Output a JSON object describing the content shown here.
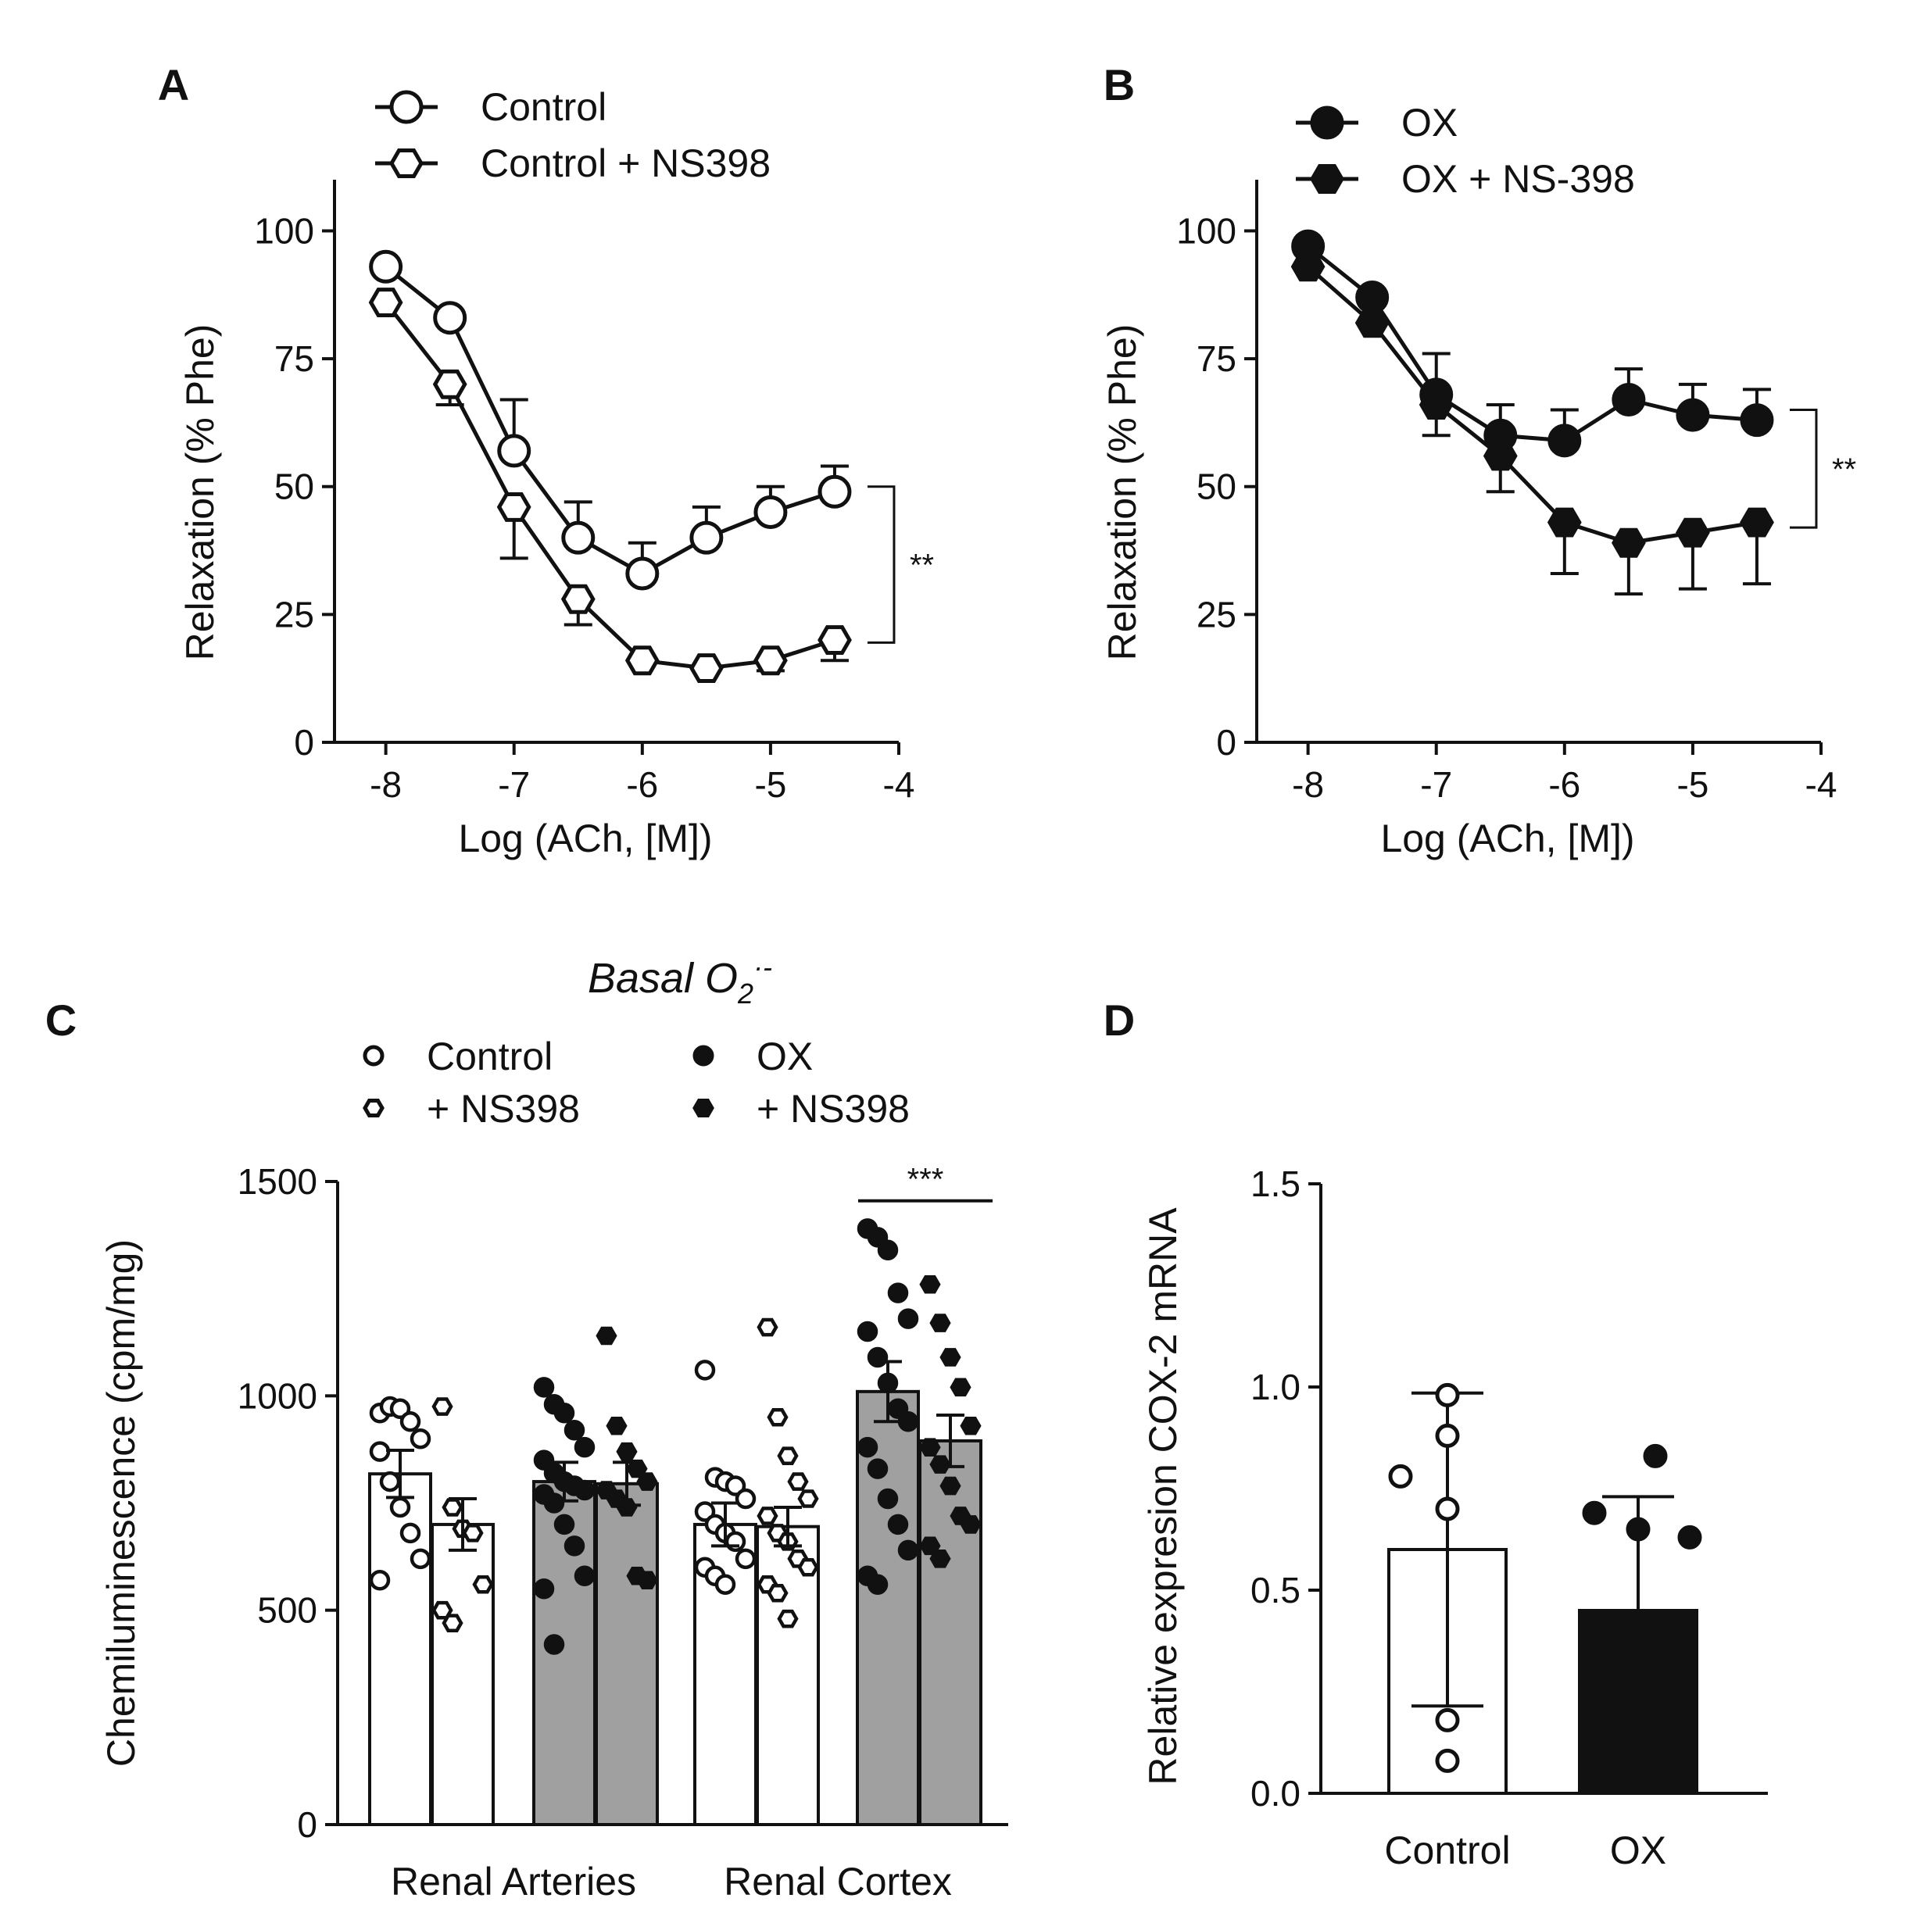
{
  "colors": {
    "ink": "#111111",
    "white_fill": "#ffffff",
    "grey_bar": "#a0a0a0",
    "black_bar": "#111111"
  },
  "chart_data": [
    {
      "panel": "A",
      "type": "line",
      "xlabel": "Log (ACh, [M])",
      "ylabel": "Relaxation (% Phe)",
      "xlim": [
        -8.4,
        -4
      ],
      "ylim": [
        0,
        110
      ],
      "xticks": [
        -8,
        -7,
        -6,
        -5,
        -4
      ],
      "yticks": [
        0,
        25,
        50,
        75,
        100
      ],
      "x": [
        -8,
        -7.5,
        -7,
        -6.5,
        -6,
        -5.5,
        -5,
        -4.5
      ],
      "series": [
        {
          "name": "Control",
          "marker": "circle-open",
          "values": [
            93,
            83,
            57,
            40,
            33,
            40,
            45,
            49
          ],
          "err": [
            0,
            0,
            10,
            7,
            6,
            6,
            5,
            5
          ]
        },
        {
          "name": "Control + NS398",
          "marker": "hexagon-open",
          "values": [
            86,
            70,
            46,
            28,
            16,
            14.5,
            16,
            20
          ],
          "err": [
            0,
            4,
            10,
            5,
            0,
            0,
            2,
            4
          ]
        }
      ],
      "significance": {
        "label": "**",
        "y_top": 50,
        "y_bottom": 19.5
      }
    },
    {
      "panel": "B",
      "type": "line",
      "xlabel": "Log (ACh, [M])",
      "ylabel": "Relaxation (% Phe)",
      "xlim": [
        -8.4,
        -4
      ],
      "ylim": [
        0,
        110
      ],
      "xticks": [
        -8,
        -7,
        -6,
        -5,
        -4
      ],
      "yticks": [
        0,
        25,
        50,
        75,
        100
      ],
      "x": [
        -8,
        -7.5,
        -7,
        -6.5,
        -6,
        -5.5,
        -5,
        -4.5
      ],
      "series": [
        {
          "name": "OX",
          "marker": "circle-filled",
          "values": [
            97,
            87,
            68,
            60,
            59,
            67,
            64,
            63
          ],
          "err": [
            0,
            0,
            8,
            6,
            6,
            6,
            6,
            6
          ]
        },
        {
          "name": "OX + NS-398",
          "marker": "hexagon-filled",
          "values": [
            93,
            82,
            66,
            56,
            43,
            39,
            41,
            43
          ],
          "err": [
            0,
            0,
            6,
            7,
            10,
            10,
            11,
            12
          ]
        }
      ],
      "significance": {
        "label": "**",
        "y_top": 65,
        "y_bottom": 42
      }
    },
    {
      "panel": "C",
      "type": "bar",
      "title": "Basal O2·-",
      "title_main": "Basal O",
      "title_sub": "2",
      "title_sup": "·-",
      "ylabel": "Chemiluminescence (cpm/mg)",
      "ylim": [
        0,
        1500
      ],
      "yticks": [
        0,
        500,
        1000,
        1500
      ],
      "categories": [
        "Renal Arteries",
        "Renal Cortex"
      ],
      "legend": [
        {
          "name": "Control",
          "marker": "circle-open"
        },
        {
          "name": "+ NS398",
          "marker": "hexagon-open"
        },
        {
          "name": "OX",
          "marker": "circle-filled"
        },
        {
          "name": "+ NS398",
          "marker": "hexagon-filled"
        }
      ],
      "bars": [
        {
          "group": 0,
          "name": "Control",
          "fill": "white",
          "marker": "circle-open",
          "mean": 818,
          "sem": 55,
          "points": [
            960,
            975,
            970,
            940,
            900,
            870,
            800,
            740,
            680,
            620,
            570
          ]
        },
        {
          "group": 0,
          "name": "Control + NS398",
          "fill": "white",
          "marker": "hexagon-open",
          "mean": 700,
          "sem": 60,
          "points": [
            975,
            740,
            690,
            680,
            560,
            500,
            470
          ]
        },
        {
          "group": 0,
          "name": "OX",
          "fill": "grey",
          "marker": "circle-filled",
          "mean": 800,
          "sem": 45,
          "points": [
            1020,
            980,
            960,
            920,
            880,
            850,
            820,
            800,
            790,
            780,
            770,
            750,
            700,
            650,
            580,
            550,
            420
          ]
        },
        {
          "group": 0,
          "name": "OX + NS398",
          "fill": "grey",
          "marker": "hexagon-filled",
          "mean": 795,
          "sem": 50,
          "points": [
            1140,
            930,
            870,
            830,
            800,
            780,
            760,
            740,
            580,
            570
          ]
        },
        {
          "group": 1,
          "name": "Control",
          "fill": "white",
          "marker": "circle-open",
          "mean": 700,
          "sem": 50,
          "points": [
            1060,
            810,
            800,
            790,
            760,
            730,
            700,
            680,
            660,
            620,
            600,
            580,
            560
          ]
        },
        {
          "group": 1,
          "name": "Control + NS398",
          "fill": "white",
          "marker": "hexagon-open",
          "mean": 695,
          "sem": 45,
          "points": [
            1160,
            950,
            860,
            800,
            760,
            720,
            680,
            660,
            620,
            600,
            560,
            540,
            480
          ]
        },
        {
          "group": 1,
          "name": "OX",
          "fill": "grey",
          "marker": "circle-filled",
          "mean": 1010,
          "sem": 70,
          "points": [
            1390,
            1370,
            1340,
            1240,
            1180,
            1150,
            1090,
            1030,
            970,
            940,
            880,
            830,
            760,
            700,
            640,
            580,
            560
          ]
        },
        {
          "group": 1,
          "name": "OX + NS398",
          "fill": "grey",
          "marker": "hexagon-filled",
          "mean": 895,
          "sem": 60,
          "points": [
            1260,
            1170,
            1090,
            1020,
            930,
            880,
            840,
            790,
            720,
            700,
            650,
            620
          ]
        }
      ],
      "significance": {
        "label": "***",
        "y": 1455
      }
    },
    {
      "panel": "D",
      "type": "bar",
      "ylabel": "Relative expresion COX-2 mRNA",
      "ylim": [
        0,
        1.5
      ],
      "yticks": [
        "0.0",
        "0.5",
        "1.0",
        "1.5"
      ],
      "categories": [
        "Control",
        "OX"
      ],
      "bars": [
        {
          "name": "Control",
          "fill": "white",
          "marker": "circle-open",
          "mean": 0.6,
          "sd": 0.385,
          "points": [
            0.98,
            0.88,
            0.78,
            0.7,
            0.18,
            0.08
          ]
        },
        {
          "name": "OX",
          "fill": "black",
          "marker": "circle-filled",
          "mean": 0.45,
          "sd": 0.28,
          "points": [
            0.83,
            0.69,
            0.65,
            0.63
          ]
        }
      ]
    }
  ]
}
